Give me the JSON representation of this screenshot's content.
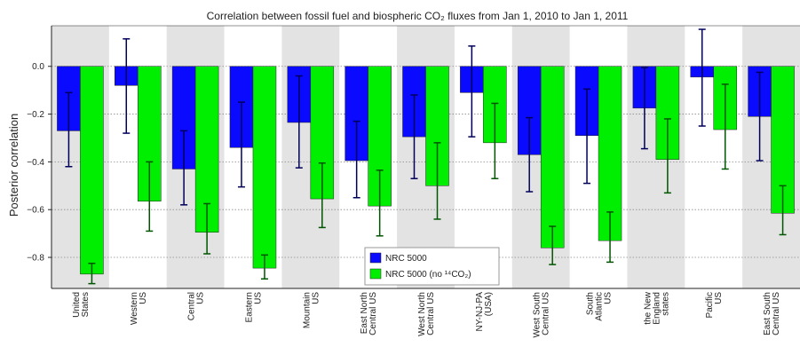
{
  "chart_data": {
    "type": "bar",
    "title": "Correlation between fossil fuel and biospheric CO₂ fluxes from Jan 1, 2010 to Jan 1, 2011",
    "ylabel": "Posterior correlation",
    "xlabel": "",
    "ylim": [
      -0.93,
      0.17
    ],
    "yticks": [
      0.0,
      -0.2,
      -0.4,
      -0.6,
      -0.8
    ],
    "ytick_labels": [
      "0.0",
      "−0.2",
      "−0.4",
      "−0.6",
      "−0.8"
    ],
    "grid": "horizontal-dotted",
    "legend_position": "bottom-center",
    "categories": [
      [
        "United",
        "States"
      ],
      [
        "Western",
        "US"
      ],
      [
        "Central",
        "US"
      ],
      [
        "Eastern",
        "US"
      ],
      [
        "Mountain",
        "US"
      ],
      [
        "East North",
        "Central US"
      ],
      [
        "West North",
        "Central US"
      ],
      [
        "NY-NJ-PA",
        "(USA)"
      ],
      [
        "West South",
        "Central US"
      ],
      [
        "South",
        "Atlantic",
        "US"
      ],
      [
        "the New",
        "England",
        "states"
      ],
      [
        "Pacific",
        "US"
      ],
      [
        "East South",
        "Central US"
      ]
    ],
    "shaded_columns": [
      0,
      2,
      4,
      6,
      8,
      10,
      12
    ],
    "series": [
      {
        "name": "NRC 5000",
        "color": "#0a0aff",
        "error_color": "#00005a",
        "values": [
          -0.27,
          -0.08,
          -0.43,
          -0.34,
          -0.235,
          -0.395,
          -0.295,
          -0.11,
          -0.37,
          -0.29,
          -0.175,
          -0.045,
          -0.21
        ],
        "err_low": [
          -0.42,
          -0.28,
          -0.58,
          -0.505,
          -0.425,
          -0.55,
          -0.47,
          -0.295,
          -0.525,
          -0.49,
          -0.345,
          -0.25,
          -0.395
        ],
        "err_high": [
          -0.11,
          0.115,
          -0.27,
          -0.15,
          -0.04,
          -0.23,
          -0.12,
          0.085,
          -0.215,
          -0.095,
          -0.005,
          0.155,
          -0.025
        ]
      },
      {
        "name": "NRC 5000 (no ¹⁴CO₂)",
        "color": "#00ee00",
        "error_color": "#005500",
        "values": [
          -0.87,
          -0.565,
          -0.695,
          -0.845,
          -0.555,
          -0.585,
          -0.5,
          -0.32,
          -0.76,
          -0.73,
          -0.39,
          -0.265,
          -0.615
        ],
        "err_low": [
          -0.91,
          -0.69,
          -0.785,
          -0.89,
          -0.675,
          -0.71,
          -0.64,
          -0.47,
          -0.83,
          -0.82,
          -0.53,
          -0.43,
          -0.705
        ],
        "err_high": [
          -0.825,
          -0.4,
          -0.575,
          -0.79,
          -0.405,
          -0.435,
          -0.32,
          -0.155,
          -0.67,
          -0.61,
          -0.22,
          -0.075,
          -0.5
        ]
      }
    ]
  }
}
